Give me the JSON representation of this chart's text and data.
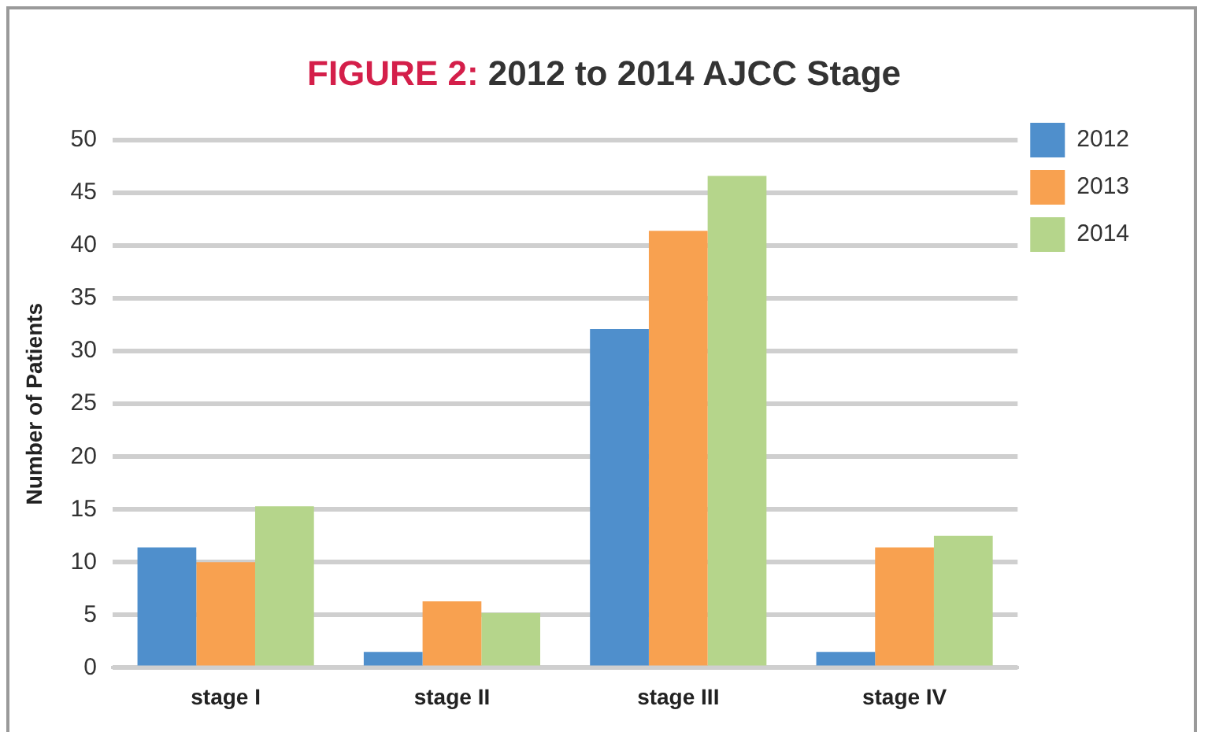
{
  "chart_data": {
    "type": "bar",
    "title": "FIGURE 2: 2012 to 2014 AJCC Stage",
    "ylabel": "Number of Patients",
    "categories": [
      "stage I",
      "stage II",
      "stage III",
      "stage IV"
    ],
    "series": [
      {
        "name": "2012",
        "color": "#4f8fcc",
        "values": [
          11.4,
          1.5,
          32.1,
          1.5
        ]
      },
      {
        "name": "2013",
        "color": "#f8a150",
        "values": [
          10,
          6.3,
          41.4,
          11.4
        ]
      },
      {
        "name": "2014",
        "color": "#b5d58b",
        "values": [
          15.3,
          5.2,
          46.6,
          12.5
        ]
      }
    ],
    "ylim": [
      0,
      50
    ],
    "yticks": [
      0,
      5,
      10,
      15,
      20,
      25,
      30,
      35,
      40,
      45,
      50
    ],
    "grid": "y",
    "legend": "right"
  }
}
